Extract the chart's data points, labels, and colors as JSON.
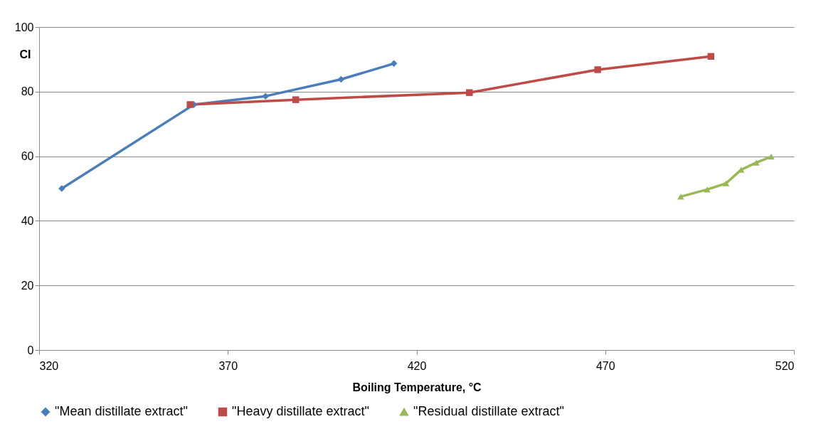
{
  "chart_data": {
    "type": "line",
    "xlabel": "Boiling Temperature, °C",
    "ylabel": "CI",
    "xlim": [
      320,
      520
    ],
    "xticks": [
      320,
      370,
      420,
      470,
      520
    ],
    "ylim": [
      0,
      100
    ],
    "yticks": [
      0,
      20,
      40,
      60,
      80,
      100
    ],
    "grid": "y",
    "legend": "bottom",
    "line_style": "solid",
    "series": [
      {
        "name": "\"Mean distillate extract\"",
        "color": "#4a7ebb",
        "marker": "diamond",
        "x": [
          326,
          361,
          380,
          400,
          414
        ],
        "values": [
          50,
          76,
          78.6,
          83.8,
          88.7
        ]
      },
      {
        "name": "\"Heavy distillate extract\"",
        "color": "#be4b48",
        "marker": "square",
        "x": [
          360,
          388,
          434,
          468,
          498
        ],
        "values": [
          76,
          77.5,
          79.7,
          86.8,
          90.9
        ]
      },
      {
        "name": "\"Residual distillate extract\"",
        "color": "#98b954",
        "marker": "triangle",
        "x": [
          490,
          497,
          502,
          506,
          510,
          514
        ],
        "values": [
          47.5,
          49.7,
          51.6,
          55.8,
          58,
          59.9
        ]
      }
    ]
  }
}
